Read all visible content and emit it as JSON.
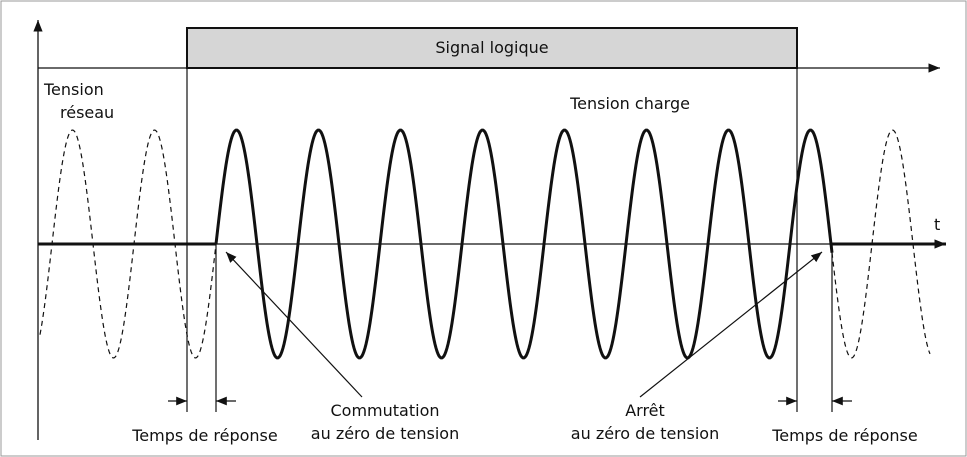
{
  "diagram": {
    "signal_label": "Signal logique",
    "axis_label": "t",
    "mains_voltage": [
      "Tension",
      "réseau"
    ],
    "load_voltage": "Tension charge",
    "switch_on": [
      "Commutation",
      "au zéro de tension"
    ],
    "switch_off": [
      "Arrêt",
      "au zéro de tension"
    ],
    "response_time_left": "Temps de réponse",
    "response_time_right": "Temps de réponse"
  }
}
